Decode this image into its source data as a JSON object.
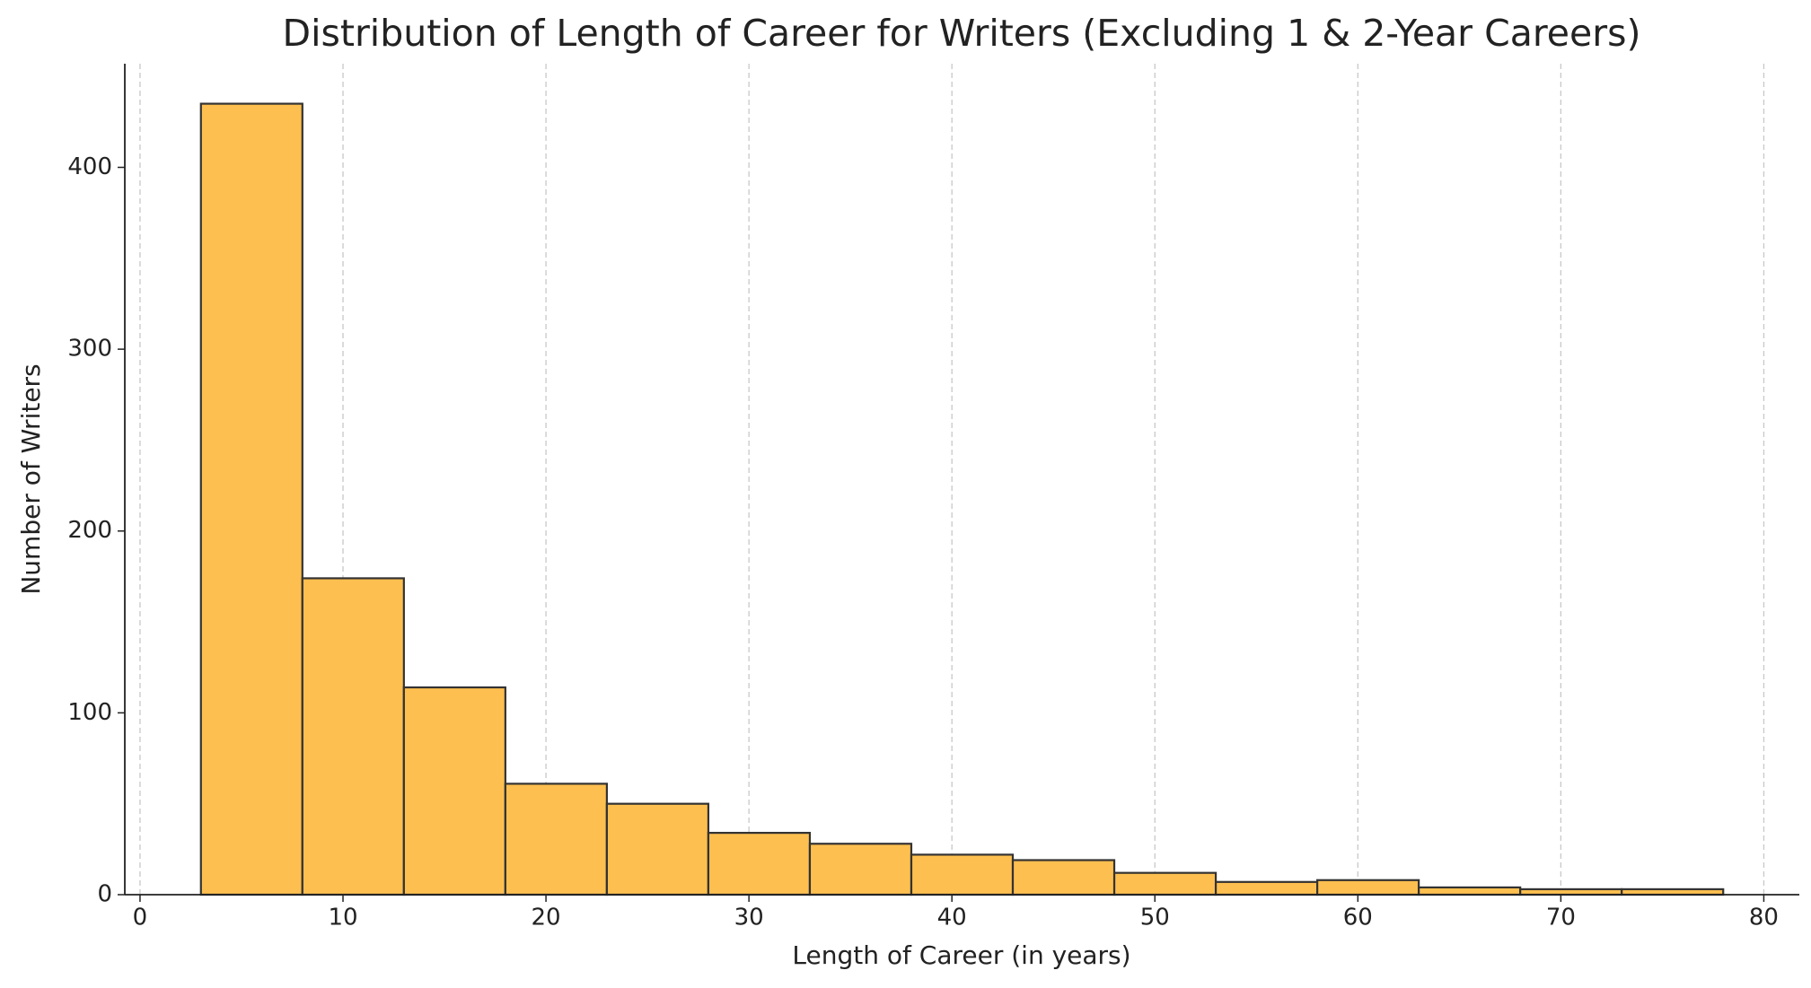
{
  "chart_data": {
    "type": "histogram",
    "title": "Distribution of Length of Career for Writers (Excluding 1 & 2-Year Careers)",
    "x_label": "Length of Career (in years)",
    "y_label": "Number of Writers",
    "bins": [
      3,
      8,
      13,
      18,
      23,
      28,
      33,
      38,
      43,
      48,
      53,
      58,
      63,
      68,
      73,
      78
    ],
    "values": [
      435,
      174,
      114,
      61,
      50,
      34,
      28,
      22,
      19,
      12,
      7,
      8,
      4,
      3,
      3
    ],
    "color": "#fdbf4f",
    "edge_color": "#333333",
    "xlim": [
      -0.75,
      81.75
    ],
    "ylim": [
      0,
      457
    ],
    "xticks": [
      0,
      10,
      20,
      30,
      40,
      50,
      60,
      70,
      80
    ],
    "yticks": [
      0,
      100,
      200,
      300,
      400
    ],
    "grid": "x"
  }
}
